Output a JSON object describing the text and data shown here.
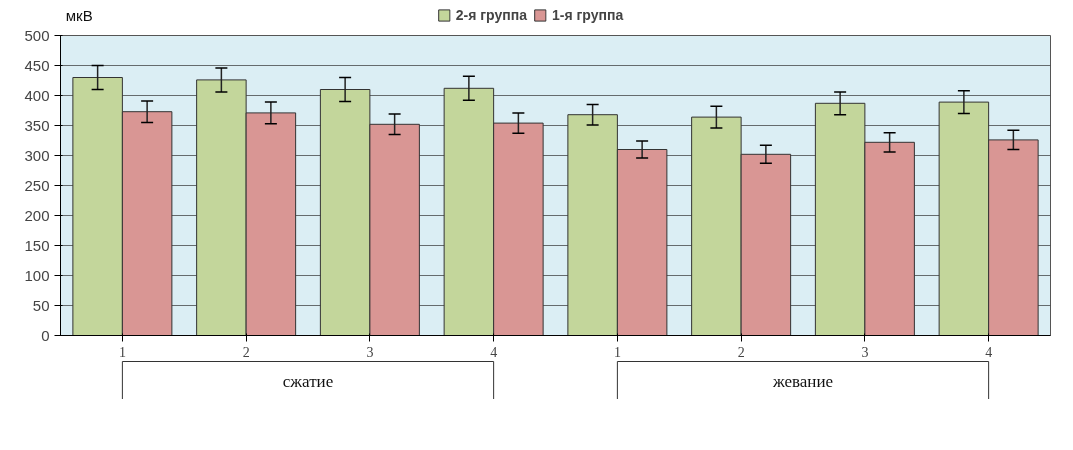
{
  "chart_data": {
    "type": "bar",
    "ylabel": "мкВ",
    "categories": [
      "1",
      "2",
      "3",
      "4",
      "1",
      "2",
      "3",
      "4"
    ],
    "series": [
      {
        "name": "2-я группа",
        "color": "#c3d69b",
        "values": [
          430,
          426,
          410,
          412,
          368,
          364,
          387,
          389
        ],
        "errors": [
          20,
          20,
          20,
          20,
          17,
          18,
          19,
          19
        ]
      },
      {
        "name": "1-я группа",
        "color": "#d99694",
        "values": [
          373,
          371,
          352,
          354,
          310,
          302,
          322,
          326
        ],
        "errors": [
          18,
          18,
          17,
          17,
          14,
          15,
          16,
          16
        ]
      }
    ],
    "ylim": [
      0,
      500
    ],
    "yticks": [
      0,
      50,
      100,
      150,
      200,
      250,
      300,
      350,
      400,
      450,
      500
    ],
    "grid": "y",
    "legend": "top",
    "annotations": [
      "сжатие",
      "жевание"
    ]
  }
}
